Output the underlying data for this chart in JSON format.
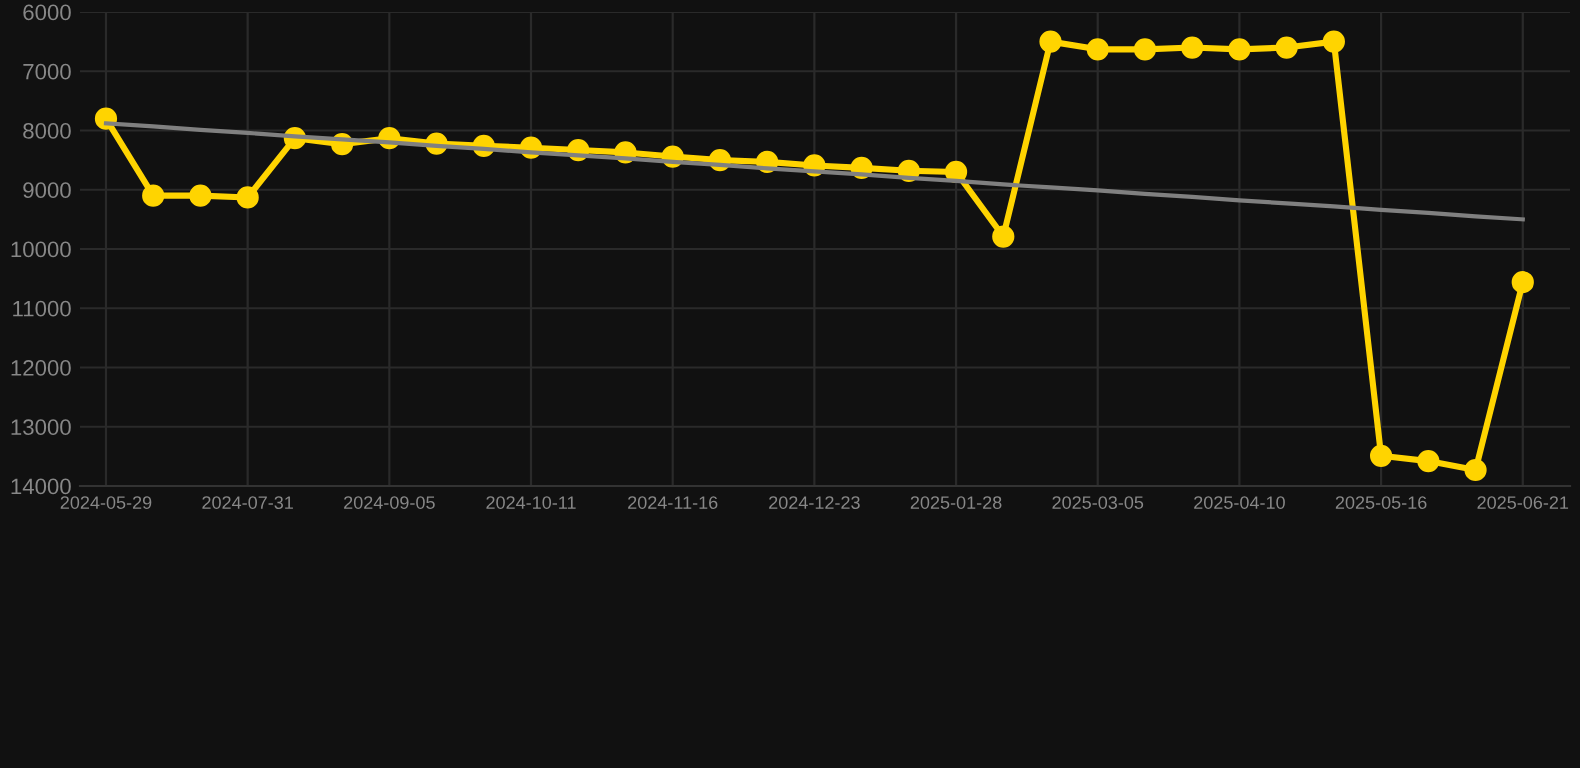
{
  "chart_data": {
    "type": "line",
    "categories": [
      "2024-05-29",
      null,
      null,
      "2024-07-31",
      null,
      null,
      "2024-09-05",
      null,
      null,
      "2024-10-11",
      null,
      null,
      "2024-11-16",
      null,
      null,
      "2024-12-23",
      null,
      null,
      "2025-01-28",
      null,
      null,
      "2025-03-05",
      null,
      null,
      "2025-04-10",
      null,
      null,
      "2025-05-16",
      null,
      null,
      "2025-06-21"
    ],
    "series": [
      {
        "color": "#ffd400",
        "marker": "circle",
        "values": [
          7800,
          9100,
          9100,
          9130,
          8130,
          8230,
          8130,
          8220,
          8260,
          8290,
          8330,
          8370,
          8440,
          8500,
          8530,
          8590,
          8630,
          8680,
          8700,
          9790,
          6500,
          6630,
          6630,
          6600,
          6630,
          6600,
          6500,
          13490,
          13580,
          13730,
          10560
        ]
      },
      {
        "type": "line",
        "color": "#808080",
        "marker": "none",
        "values": [
          7880,
          7930,
          7990,
          8040,
          8100,
          8150,
          8200,
          8260,
          8310,
          8370,
          8420,
          8470,
          8530,
          8580,
          8640,
          8690,
          8740,
          8800,
          8850,
          8910,
          8960,
          9010,
          9070,
          9120,
          9180,
          9230,
          9280,
          9340,
          9390,
          9450,
          9500
        ]
      }
    ],
    "ylim": [
      14000,
      6000
    ],
    "yticks": [
      6000,
      7000,
      8000,
      9000,
      10000,
      11000,
      12000,
      13000,
      14000
    ],
    "grid": true
  }
}
